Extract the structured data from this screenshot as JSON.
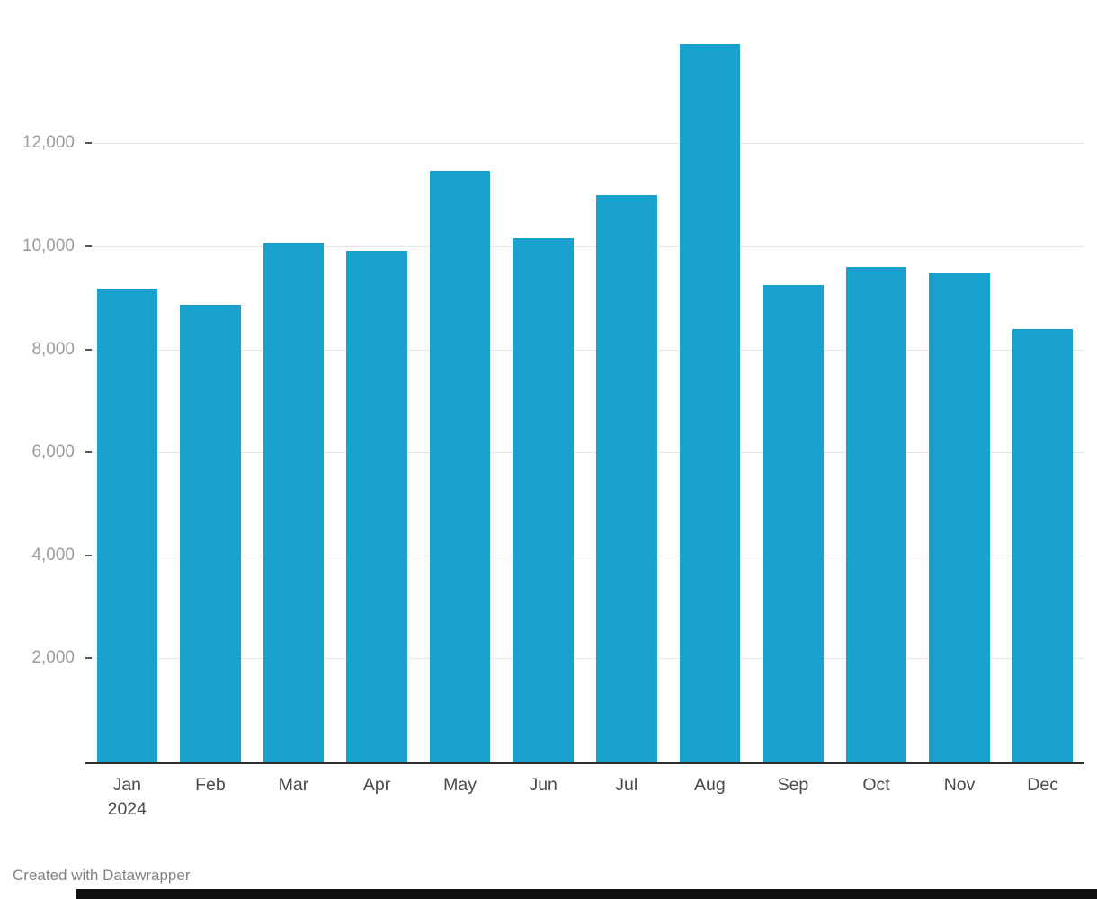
{
  "chart_data": {
    "type": "bar",
    "title": "",
    "categories": [
      "Jan",
      "Feb",
      "Mar",
      "Apr",
      "May",
      "Jun",
      "Jul",
      "Aug",
      "Sep",
      "Oct",
      "Nov",
      "Dec"
    ],
    "first_category_sub_label": "2024",
    "values": [
      9200,
      8880,
      10080,
      9930,
      11480,
      10170,
      11010,
      13950,
      9260,
      9610,
      9500,
      8410
    ],
    "y_ticks": [
      {
        "value": 2000,
        "label": "2,000"
      },
      {
        "value": 4000,
        "label": "4,000"
      },
      {
        "value": 6000,
        "label": "6,000"
      },
      {
        "value": 8000,
        "label": "8,000"
      },
      {
        "value": 10000,
        "label": "10,000"
      },
      {
        "value": 12000,
        "label": "12,000"
      }
    ],
    "ylim": [
      0,
      14834
    ],
    "grid": true,
    "legend": "none",
    "bar_color": "#18a1cd"
  },
  "footer": {
    "credit": "Created with Datawrapper"
  }
}
